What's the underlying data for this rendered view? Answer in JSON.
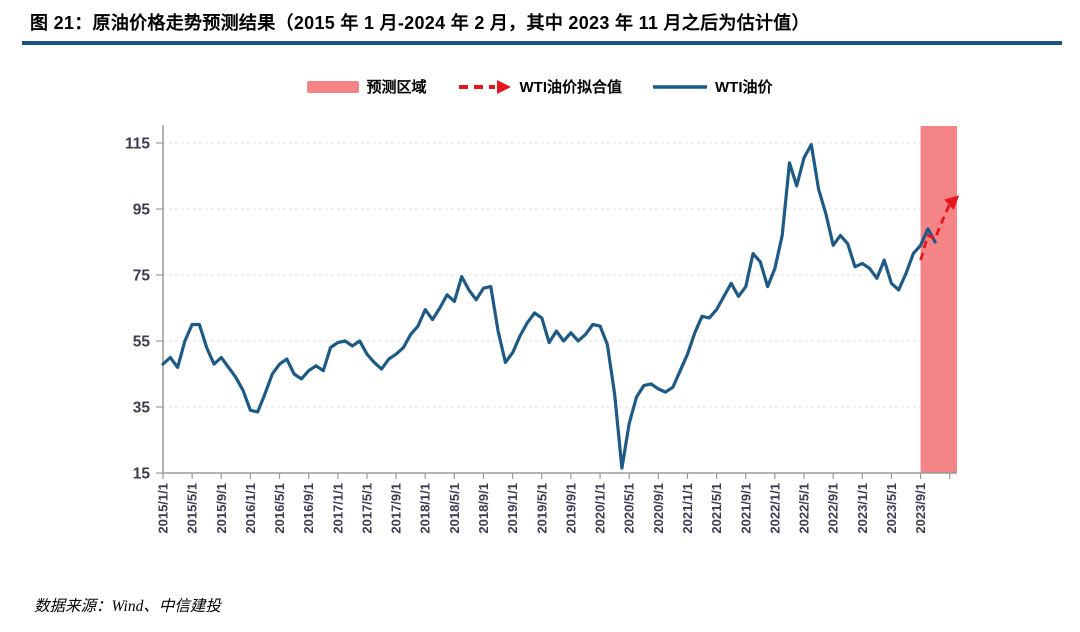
{
  "figure": {
    "title": "图 21：原油价格走势预测结果（2015 年 1 月-2024 年 2 月，其中 2023 年 11 月之后为估计值）",
    "divider_color": "#1e5383"
  },
  "legend": {
    "items": [
      {
        "label": "预测区域",
        "type": "region",
        "color": "#f58487"
      },
      {
        "label": "WTI油价拟合值",
        "type": "dashed-arrow",
        "color": "#e8151d"
      },
      {
        "label": "WTI油价",
        "type": "line",
        "color": "#1d5a86"
      }
    ]
  },
  "source": {
    "label": "数据来源：Wind、中信建投"
  },
  "chart_data": {
    "type": "line",
    "title": "原油价格走势预测结果",
    "x_range": {
      "start": "2015/1",
      "end": "2024/2"
    },
    "x_tick_step_months": 4,
    "x_tick_labels": [
      "2015/1/1",
      "2015/5/1",
      "2015/9/1",
      "2016/1/1",
      "2016/5/1",
      "2016/9/1",
      "2017/1/1",
      "2017/5/1",
      "2017/9/1",
      "2018/1/1",
      "2018/5/1",
      "2018/9/1",
      "2019/1/1",
      "2019/5/1",
      "2019/9/1",
      "2020/1/1",
      "2020/5/1",
      "2020/9/1",
      "2021/1/1",
      "2021/5/1",
      "2021/9/1",
      "2022/1/1",
      "2022/5/1",
      "2022/9/1",
      "2023/1/1",
      "2023/5/1",
      "2023/9/1"
    ],
    "y_ticks": [
      15,
      35,
      55,
      75,
      95,
      115
    ],
    "ylim": [
      15,
      115
    ],
    "grid": "horizontal-dashed",
    "legend_position": "top-center",
    "forecast_region": {
      "label": "预测区域",
      "start": "2023/9",
      "end": "2024/2",
      "color": "#f58487"
    },
    "series": [
      {
        "name": "WTI油价",
        "type": "line",
        "color": "#1d5a86",
        "start": "2015/1",
        "monthly_values": [
          48,
          50,
          47,
          55,
          60,
          60,
          53,
          48,
          50,
          47,
          44,
          40,
          34,
          33.5,
          39,
          45,
          48,
          49.5,
          45,
          43.5,
          46,
          47.5,
          46,
          53,
          54.5,
          55,
          53.5,
          55,
          51,
          48.5,
          46.5,
          49.5,
          51,
          53,
          57,
          59.5,
          64.5,
          61.5,
          65,
          69,
          67,
          74.5,
          70.5,
          67.5,
          71,
          71.5,
          58,
          48.5,
          51.5,
          56.5,
          60.5,
          63.5,
          62,
          54.5,
          58,
          55,
          57.5,
          55,
          57,
          60,
          59.5,
          54,
          39,
          16.5,
          30,
          38,
          41.5,
          42,
          40.5,
          39.5,
          41,
          46,
          51,
          57.5,
          62.5,
          62,
          64.5,
          68.5,
          72.5,
          68.5,
          71.5,
          81.5,
          79,
          71.5,
          77,
          87,
          109,
          102,
          110.5,
          114.5,
          101,
          93.5,
          84,
          87,
          84.5,
          77.5,
          78.5,
          77,
          74,
          79.5,
          72.5,
          70.5,
          75.5,
          81.5,
          84,
          89,
          85
        ]
      },
      {
        "name": "WTI油价拟合值",
        "type": "dashed-line-arrow",
        "color": "#e8151d",
        "start": "2023/9",
        "monthly_values": [
          79.5,
          87,
          86,
          91.5,
          96.5,
          98.5
        ]
      }
    ],
    "colors": {
      "grid": "#d9d9d9",
      "axis": "#9a9a9a",
      "tick_text": "#3c3c50"
    }
  }
}
